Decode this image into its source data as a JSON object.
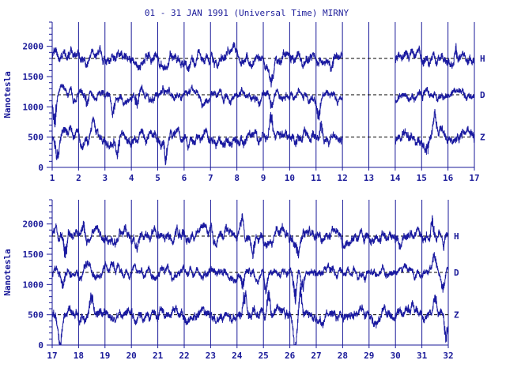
{
  "chart_data": {
    "type": "line",
    "title": "01 - 31 JAN 1991 (Universal Time) MIRNY",
    "ylabel": "Nanotesla",
    "ylim": [
      0,
      2400
    ],
    "yticks": [
      0,
      500,
      1000,
      1500,
      2000
    ],
    "colors": {
      "axis": "#1a1a99",
      "trace": "#1a1aa0",
      "baseline": "#000000"
    },
    "panels": [
      {
        "xlim": [
          1,
          17
        ],
        "xticks": [
          "1",
          "2",
          "3",
          "4",
          "5",
          "6",
          "7",
          "8",
          "9",
          "10",
          "11",
          "12",
          "13",
          "14",
          "15",
          "16",
          "17"
        ],
        "gaps": [
          [
            12,
            14
          ]
        ],
        "series": [
          {
            "name": "H",
            "baseline": 1800,
            "amp": 110,
            "spikes": [
              [
                1.1,
                150
              ],
              [
                2.3,
                -120
              ],
              [
                5.9,
                -100
              ],
              [
                9.3,
                -200
              ],
              [
                10.3,
                100
              ],
              [
                11.6,
                -150
              ],
              [
                15.1,
                100
              ],
              [
                16.3,
                250
              ]
            ]
          },
          {
            "name": "D",
            "baseline": 1200,
            "amp": 90,
            "spikes": [
              [
                1.1,
                -450
              ],
              [
                2.3,
                -250
              ],
              [
                3.3,
                -300
              ],
              [
                4.2,
                -250
              ],
              [
                9.3,
                -200
              ],
              [
                11.1,
                -350
              ],
              [
                15.1,
                80
              ]
            ]
          },
          {
            "name": "Z",
            "baseline": 500,
            "amp": 110,
            "spikes": [
              [
                1.2,
                -350
              ],
              [
                2.6,
                250
              ],
              [
                3.5,
                -250
              ],
              [
                5.3,
                -300
              ],
              [
                9.3,
                350
              ],
              [
                11.2,
                250
              ],
              [
                15.2,
                -300
              ],
              [
                15.5,
                250
              ]
            ]
          }
        ]
      },
      {
        "xlim": [
          17,
          32
        ],
        "xticks": [
          "17",
          "18",
          "19",
          "20",
          "21",
          "22",
          "23",
          "24",
          "25",
          "26",
          "27",
          "28",
          "29",
          "30",
          "31",
          "32"
        ],
        "gaps": [],
        "series": [
          {
            "name": "H",
            "baseline": 1800,
            "amp": 110,
            "spikes": [
              [
                17.5,
                -300
              ],
              [
                18.2,
                150
              ],
              [
                24.2,
                250
              ],
              [
                24.6,
                -250
              ],
              [
                26.3,
                -250
              ],
              [
                31.4,
                300
              ],
              [
                31.8,
                -150
              ]
            ]
          },
          {
            "name": "D",
            "baseline": 1200,
            "amp": 90,
            "spikes": [
              [
                17.4,
                -250
              ],
              [
                18.3,
                150
              ],
              [
                24.2,
                -250
              ],
              [
                25.1,
                -300
              ],
              [
                26.2,
                -450
              ],
              [
                26.5,
                -250
              ],
              [
                31.5,
                250
              ],
              [
                31.8,
                -150
              ]
            ]
          },
          {
            "name": "Z",
            "baseline": 500,
            "amp": 110,
            "spikes": [
              [
                17.3,
                -400
              ],
              [
                18.5,
                250
              ],
              [
                24.3,
                350
              ],
              [
                25.2,
                300
              ],
              [
                26.2,
                -500
              ],
              [
                26.4,
                400
              ],
              [
                31.5,
                300
              ],
              [
                31.9,
                -400
              ]
            ]
          }
        ]
      }
    ]
  }
}
